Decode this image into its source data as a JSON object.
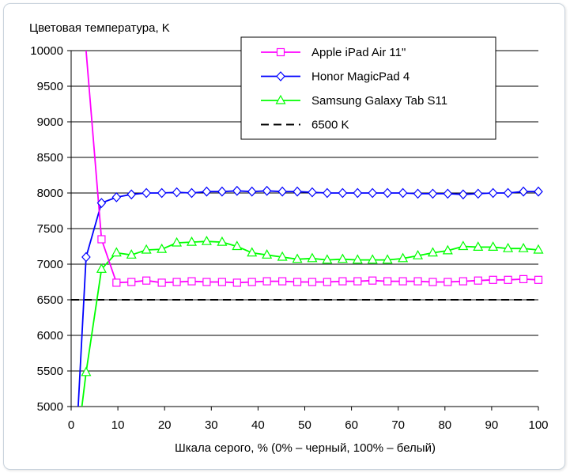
{
  "chart_data": {
    "type": "line",
    "ylabel": "Цветовая температура, K",
    "xlabel": "Шкала серого, % (0% – черный, 100% – белый)",
    "xlim": [
      0,
      100
    ],
    "ylim": [
      5000,
      10000
    ],
    "x_ticks": [
      0,
      10,
      20,
      30,
      40,
      50,
      60,
      70,
      80,
      90,
      100
    ],
    "y_ticks": [
      5000,
      5500,
      6000,
      6500,
      7000,
      7500,
      8000,
      8500,
      9000,
      9500,
      10000
    ],
    "grid": "horizontal",
    "legend_position": "top-right",
    "series": [
      {
        "name": "Apple iPad Air 11\"",
        "color": "#ff00ff",
        "marker": "square",
        "line_start": {
          "x": 3.2,
          "y": 10000
        },
        "x": [
          6.5,
          9.7,
          12.9,
          16.1,
          19.4,
          22.6,
          25.8,
          29.0,
          32.3,
          35.5,
          38.7,
          41.9,
          45.2,
          48.4,
          51.6,
          54.8,
          58.1,
          61.3,
          64.5,
          67.7,
          71.0,
          74.2,
          77.4,
          80.6,
          83.9,
          87.1,
          90.3,
          93.5,
          96.8,
          100
        ],
        "y": [
          7350,
          6740,
          6750,
          6770,
          6740,
          6750,
          6760,
          6750,
          6750,
          6740,
          6750,
          6760,
          6760,
          6750,
          6750,
          6750,
          6760,
          6760,
          6770,
          6760,
          6760,
          6760,
          6750,
          6750,
          6760,
          6770,
          6780,
          6780,
          6790,
          6780
        ]
      },
      {
        "name": "Honor MagicPad 4",
        "color": "#0000ff",
        "marker": "diamond",
        "line_start": {
          "x": 1.5,
          "y": 5000
        },
        "x": [
          3.2,
          6.5,
          9.7,
          12.9,
          16.1,
          19.4,
          22.6,
          25.8,
          29.0,
          32.3,
          35.5,
          38.7,
          41.9,
          45.2,
          48.4,
          51.6,
          54.8,
          58.1,
          61.3,
          64.5,
          67.7,
          71.0,
          74.2,
          77.4,
          80.6,
          83.9,
          87.1,
          90.3,
          93.5,
          96.8,
          100
        ],
        "y": [
          7100,
          7860,
          7940,
          7980,
          8000,
          8000,
          8010,
          8000,
          8020,
          8020,
          8030,
          8020,
          8030,
          8020,
          8020,
          8010,
          8000,
          8000,
          8000,
          8000,
          8000,
          8000,
          7990,
          7990,
          7990,
          7980,
          7990,
          8000,
          8000,
          8020,
          8020
        ]
      },
      {
        "name": "Samsung Galaxy Tab S11",
        "color": "#00ff00",
        "marker": "triangle",
        "line_start": {
          "x": 2.3,
          "y": 5000
        },
        "x": [
          3.2,
          6.5,
          9.7,
          12.9,
          16.1,
          19.4,
          22.6,
          25.8,
          29.0,
          32.3,
          35.5,
          38.7,
          41.9,
          45.2,
          48.4,
          51.6,
          54.8,
          58.1,
          61.3,
          64.5,
          67.7,
          71.0,
          74.2,
          77.4,
          80.6,
          83.9,
          87.1,
          90.3,
          93.5,
          96.8,
          100
        ],
        "y": [
          5480,
          6930,
          7160,
          7130,
          7200,
          7210,
          7300,
          7310,
          7320,
          7310,
          7250,
          7160,
          7130,
          7100,
          7070,
          7080,
          7060,
          7070,
          7060,
          7060,
          7060,
          7080,
          7120,
          7160,
          7190,
          7250,
          7240,
          7240,
          7220,
          7220,
          7200
        ]
      },
      {
        "name": "6500 K",
        "color": "#000000",
        "style": "dashed",
        "x": [
          0,
          100
        ],
        "y": [
          6500,
          6500
        ]
      }
    ]
  }
}
